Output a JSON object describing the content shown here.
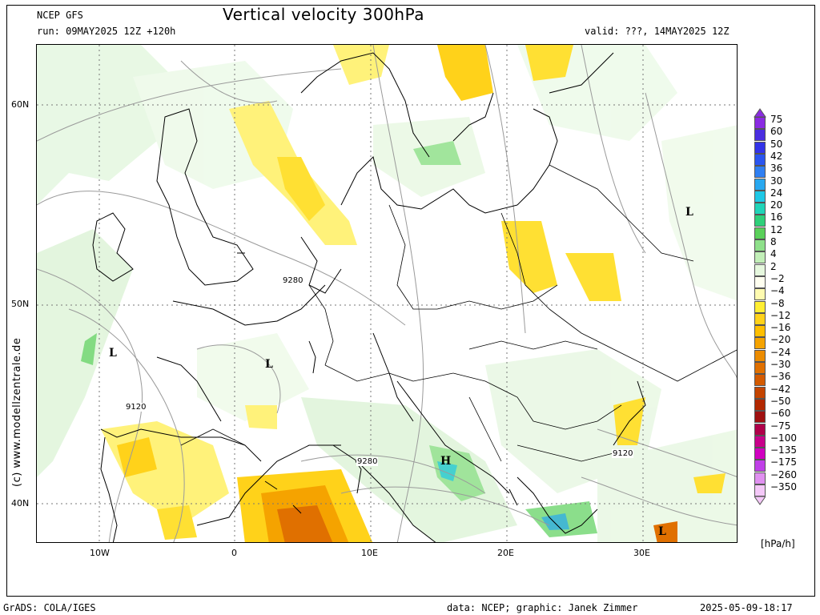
{
  "header": {
    "model": "NCEP GFS",
    "run": "run: 09MAY2025 12Z +120h",
    "title": "Vertical velocity 300hPa",
    "valid": "valid: ???, 14MAY2025 12Z"
  },
  "footer": {
    "grads": "GrADS: COLA/IGES",
    "credit": "data: NCEP; graphic: Janek Zimmer",
    "timestamp": "2025-05-09-18:17"
  },
  "watermark": "(c) www.modellzentrale.de",
  "axes": {
    "lat_labels": [
      "60N",
      "50N",
      "40N"
    ],
    "lon_labels": [
      "10W",
      "0",
      "10E",
      "20E",
      "30E"
    ]
  },
  "pressure_centers": [
    "L",
    "L",
    "L",
    "H",
    "L",
    "L"
  ],
  "contour_labels": [
    "9280",
    "9120",
    "9280",
    "9120"
  ],
  "legend": {
    "unit": "[hPa/h]",
    "levels": [
      "75",
      "60",
      "50",
      "42",
      "36",
      "30",
      "24",
      "20",
      "16",
      "12",
      "8",
      "4",
      "2",
      "−2",
      "−4",
      "−8",
      "−12",
      "−16",
      "−20",
      "−24",
      "−30",
      "−36",
      "−42",
      "−50",
      "−60",
      "−75",
      "−100",
      "−135",
      "−175",
      "−260",
      "−350"
    ],
    "colors": [
      "#8a2be2",
      "#4a2ee0",
      "#3333e8",
      "#2a55f0",
      "#2f7ff2",
      "#28a8f0",
      "#1ec8e6",
      "#20d4b8",
      "#2ed07a",
      "#5ad05a",
      "#8ee08a",
      "#c2efb8",
      "#e6f8de",
      "#fffff0",
      "#fffbb0",
      "#ffee33",
      "#ffd21a",
      "#ffbf00",
      "#f5a300",
      "#ec8c00",
      "#e07000",
      "#d45a00",
      "#c44400",
      "#b22800",
      "#a01010",
      "#b0004a",
      "#c8008a",
      "#d000c0",
      "#c040e8",
      "#e090f0",
      "#f4c8f8"
    ]
  }
}
